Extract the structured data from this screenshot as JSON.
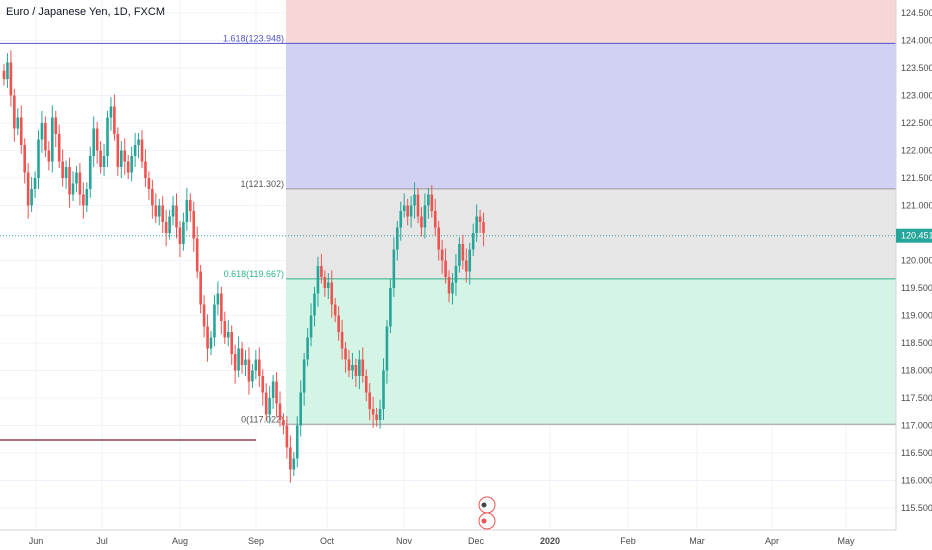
{
  "header": {
    "symbol_title": "Euro / Japanese Yen, 1D, FXCM"
  },
  "colors": {
    "up": "#26a69a",
    "down": "#ef5350",
    "fib_top": "#f7d6d6",
    "fib_ext": "#d1d1f4",
    "fib_mid": "#e6e6e6",
    "fib_low": "#d4f4e6",
    "fib_ext_line": "#5656c8",
    "fib_mid_line": "#9a9a9a",
    "fib_low_line": "#2fb38a",
    "last_price_bg": "#26a69a",
    "support_line": "#7a1c2a"
  },
  "price_axis": {
    "min": 115.2,
    "max": 124.9,
    "ticks": [
      "115.500",
      "116.000",
      "116.500",
      "117.000",
      "117.500",
      "118.000",
      "118.500",
      "119.000",
      "119.500",
      "120.000",
      "120.500",
      "121.000",
      "121.500",
      "122.000",
      "122.500",
      "123.000",
      "123.500",
      "124.000",
      "124.500"
    ],
    "last_price_label": "120.451"
  },
  "time_axis": {
    "labels": [
      "Jun",
      "Jul",
      "Aug",
      "Sep",
      "Oct",
      "Nov",
      "Dec",
      "2020",
      "Feb",
      "Mar",
      "Apr",
      "May"
    ],
    "bold_labels": [
      "2020"
    ]
  },
  "fib_labels": {
    "ext": "1.618(123.948)",
    "one": "1(121.302)",
    "mid": "0.618(119.667)",
    "zero": "0(117.022)"
  },
  "chart_data": {
    "type": "candlestick",
    "title": "Euro / Japanese Yen, 1D, FXCM",
    "x_ticks": [
      "Jun",
      "Jul",
      "Aug",
      "Sep",
      "Oct",
      "Nov",
      "Dec",
      "2020",
      "Feb",
      "Mar",
      "Apr",
      "May"
    ],
    "y_range": [
      115.2,
      124.9
    ],
    "last_price": 120.451,
    "fib_levels": [
      {
        "ratio": "1.618",
        "price": 123.948
      },
      {
        "ratio": "1",
        "price": 121.302
      },
      {
        "ratio": "0.618",
        "price": 119.667
      },
      {
        "ratio": "0",
        "price": 117.022
      }
    ],
    "candle_closes": [
      123.3,
      123.6,
      123.0,
      122.4,
      122.6,
      122.1,
      121.6,
      121.0,
      121.3,
      121.5,
      122.2,
      122.5,
      122.0,
      121.8,
      122.6,
      122.3,
      121.8,
      121.5,
      121.7,
      121.2,
      121.4,
      121.6,
      121.2,
      121.0,
      121.3,
      121.9,
      122.4,
      122.0,
      121.7,
      121.9,
      122.6,
      122.8,
      122.3,
      121.7,
      122.0,
      121.8,
      121.6,
      121.9,
      122.1,
      122.2,
      121.8,
      121.5,
      121.3,
      121.0,
      120.8,
      121.0,
      120.7,
      120.5,
      120.8,
      121.0,
      120.6,
      120.3,
      120.7,
      121.1,
      120.9,
      120.4,
      119.8,
      119.2,
      118.8,
      118.4,
      118.6,
      119.2,
      119.4,
      118.9,
      118.6,
      118.7,
      118.3,
      118.0,
      118.4,
      118.1,
      118.2,
      117.8,
      118.0,
      118.2,
      117.9,
      117.6,
      117.2,
      117.5,
      117.8,
      117.4,
      117.1,
      117.0,
      116.6,
      116.2,
      116.4,
      117.0,
      117.6,
      118.2,
      118.6,
      119.0,
      119.4,
      119.9,
      119.7,
      119.5,
      119.6,
      119.2,
      119.0,
      118.7,
      118.4,
      118.2,
      118.0,
      118.1,
      117.9,
      118.2,
      117.9,
      117.6,
      117.3,
      117.2,
      117.1,
      117.3,
      118.0,
      118.8,
      119.5,
      120.2,
      120.6,
      120.9,
      121.0,
      120.8,
      121.0,
      121.2,
      120.8,
      120.6,
      121.0,
      121.2,
      120.9,
      120.6,
      120.2,
      120.0,
      119.7,
      119.4,
      119.6,
      119.9,
      120.3,
      120.0,
      119.8,
      120.2,
      120.5,
      120.8,
      120.7,
      120.5
    ]
  }
}
